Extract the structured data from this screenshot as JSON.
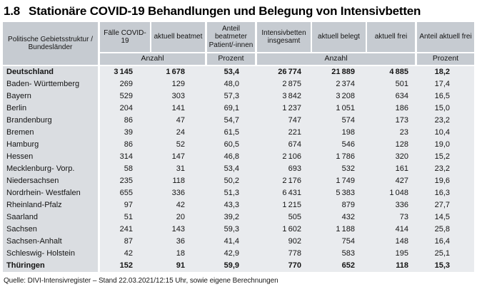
{
  "title": {
    "number": "1.8",
    "text": "Stationäre COVID-19 Behandlungen und Belegung von Intensivbetten"
  },
  "source": "Quelle: DIVI-Intensivregister – Stand 22.03.2021/12:15 Uhr, sowie eigene Berechnungen",
  "colors": {
    "header_bg": "#c6cbd1",
    "region_col_bg": "#dadde1",
    "data_bg": "#e9ebee",
    "separator": "#ffffff",
    "text": "#141414"
  },
  "chart_data": {
    "type": "table",
    "title": "1.8 Stationäre COVID-19 Behandlungen und Belegung von Intensivbetten",
    "row_header": "Politische Gebietsstruktur /\nBundesländer",
    "columns": [
      "Fälle COVID-19",
      "aktuell beatmet",
      "Anteil\nbeatmeter\nPatient/-innen",
      "Intensivbetten\ninsgesamt",
      "aktuell belegt",
      "aktuell frei",
      "Anteil aktuell frei"
    ],
    "unit_row": [
      "Anzahl",
      "Prozent",
      "Anzahl",
      "Prozent"
    ],
    "rows": [
      {
        "name": "Deutschland",
        "bold": true,
        "values": [
          "3 145",
          "1 678",
          "53,4",
          "26 774",
          "21 889",
          "4 885",
          "18,2"
        ]
      },
      {
        "name": "Baden- Württemberg",
        "bold": false,
        "values": [
          "269",
          "129",
          "48,0",
          "2 875",
          "2 374",
          "501",
          "17,4"
        ]
      },
      {
        "name": "Bayern",
        "bold": false,
        "values": [
          "529",
          "303",
          "57,3",
          "3 842",
          "3 208",
          "634",
          "16,5"
        ]
      },
      {
        "name": "Berlin",
        "bold": false,
        "values": [
          "204",
          "141",
          "69,1",
          "1 237",
          "1 051",
          "186",
          "15,0"
        ]
      },
      {
        "name": "Brandenburg",
        "bold": false,
        "values": [
          "86",
          "47",
          "54,7",
          "747",
          "574",
          "173",
          "23,2"
        ]
      },
      {
        "name": "Bremen",
        "bold": false,
        "values": [
          "39",
          "24",
          "61,5",
          "221",
          "198",
          "23",
          "10,4"
        ]
      },
      {
        "name": "Hamburg",
        "bold": false,
        "values": [
          "86",
          "52",
          "60,5",
          "674",
          "546",
          "128",
          "19,0"
        ]
      },
      {
        "name": "Hessen",
        "bold": false,
        "values": [
          "314",
          "147",
          "46,8",
          "2 106",
          "1 786",
          "320",
          "15,2"
        ]
      },
      {
        "name": "Mecklenburg- Vorp.",
        "bold": false,
        "values": [
          "58",
          "31",
          "53,4",
          "693",
          "532",
          "161",
          "23,2"
        ]
      },
      {
        "name": "Niedersachsen",
        "bold": false,
        "values": [
          "235",
          "118",
          "50,2",
          "2 176",
          "1 749",
          "427",
          "19,6"
        ]
      },
      {
        "name": "Nordrhein- Westfalen",
        "bold": false,
        "values": [
          "655",
          "336",
          "51,3",
          "6 431",
          "5 383",
          "1 048",
          "16,3"
        ]
      },
      {
        "name": "Rheinland-Pfalz",
        "bold": false,
        "values": [
          "97",
          "42",
          "43,3",
          "1 215",
          "879",
          "336",
          "27,7"
        ]
      },
      {
        "name": "Saarland",
        "bold": false,
        "values": [
          "51",
          "20",
          "39,2",
          "505",
          "432",
          "73",
          "14,5"
        ]
      },
      {
        "name": "Sachsen",
        "bold": false,
        "values": [
          "241",
          "143",
          "59,3",
          "1 602",
          "1 188",
          "414",
          "25,8"
        ]
      },
      {
        "name": "Sachsen-Anhalt",
        "bold": false,
        "values": [
          "87",
          "36",
          "41,4",
          "902",
          "754",
          "148",
          "16,4"
        ]
      },
      {
        "name": "Schleswig- Holstein",
        "bold": false,
        "values": [
          "42",
          "18",
          "42,9",
          "778",
          "583",
          "195",
          "25,1"
        ]
      },
      {
        "name": "Thüringen",
        "bold": true,
        "values": [
          "152",
          "91",
          "59,9",
          "770",
          "652",
          "118",
          "15,3"
        ]
      }
    ]
  }
}
